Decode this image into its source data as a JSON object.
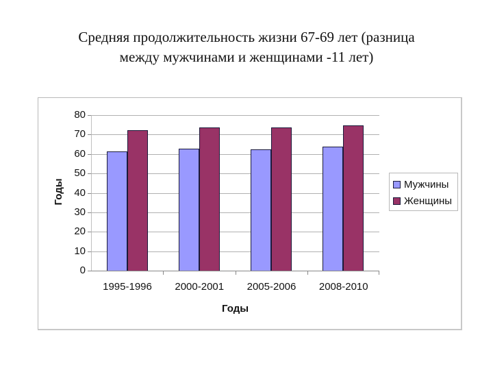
{
  "title": {
    "line1": "Средняя продолжительность жизни 67-69 лет (разница",
    "line2": "между мужчинами и женщинами -11 лет)"
  },
  "colors": {
    "men": "#9999ff",
    "women": "#993366"
  },
  "chart_data": {
    "type": "bar",
    "title": "Средняя продолжительность жизни 67-69 лет (разница между мужчинами и женщинами -11 лет)",
    "categories": [
      "1995-1996",
      "2000-2001",
      "2005-2006",
      "2008-2010"
    ],
    "series": [
      {
        "name": "Мужчины",
        "color": "#9999ff",
        "values": [
          61.4,
          62.8,
          62.4,
          63.8
        ]
      },
      {
        "name": "Женщины",
        "color": "#993366",
        "values": [
          72.3,
          73.6,
          73.7,
          74.8
        ]
      }
    ],
    "xlabel": "Годы",
    "ylabel": "Годы",
    "ylim": [
      0,
      80
    ],
    "yticks": [
      0,
      10,
      20,
      30,
      40,
      50,
      60,
      70,
      80
    ],
    "grid": true,
    "legend_position": "right"
  }
}
